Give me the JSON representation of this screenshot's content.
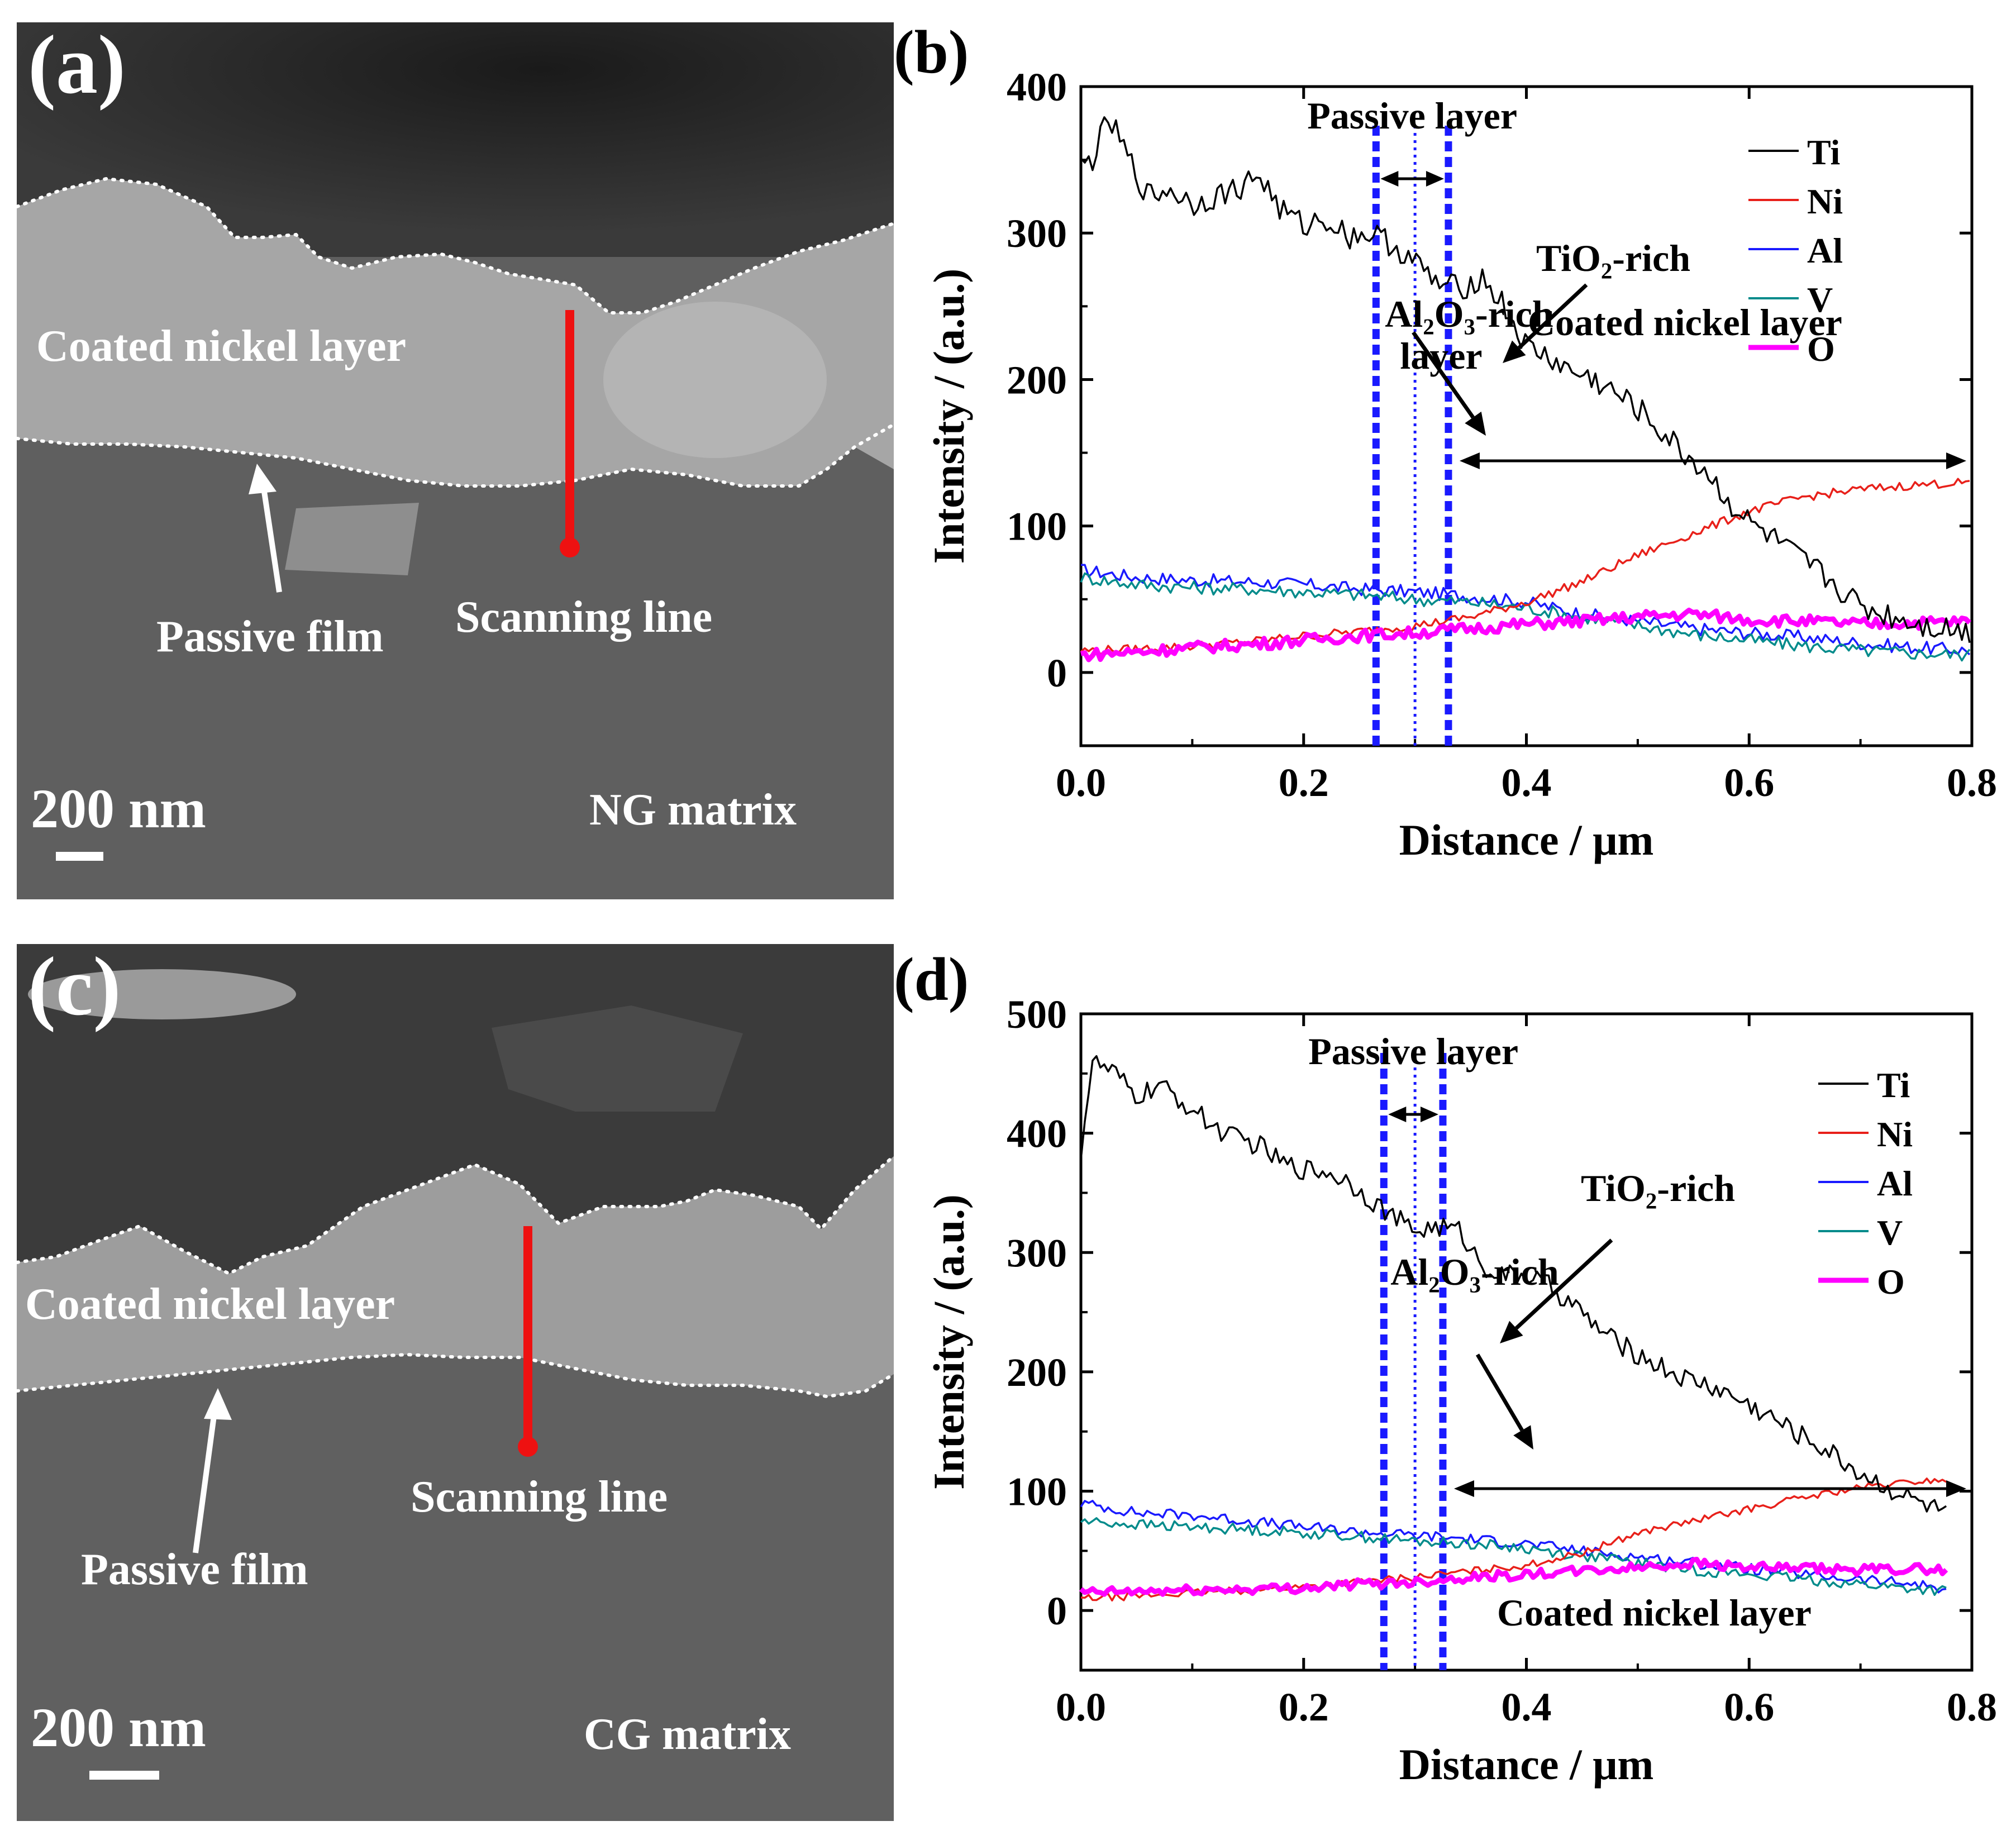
{
  "panel_a": {
    "label": "(a)",
    "coated_layer": "Coated nickel layer",
    "passive_film": "Passive film",
    "scanning_line": "Scanning line",
    "scale_bar": "200 nm",
    "matrix": "NG matrix"
  },
  "panel_c": {
    "label": "(c)",
    "coated_layer": "Coated nickel layer",
    "passive_film": "Passive film",
    "scanning_line": "Scanning line",
    "scale_bar": "200 nm",
    "matrix": "CG matrix"
  },
  "colors": {
    "Ti": "#000000",
    "Ni": "#e8201a",
    "Al": "#1a1aff",
    "V": "#008b8b",
    "O": "#ff00ff",
    "guide": "#1a1aff",
    "scan": "#ee1111"
  },
  "chart_data": [
    {
      "id": "b",
      "panel_label": "(b)",
      "type": "line",
      "xlabel": "Distance / μm",
      "ylabel": "Intensity / (a.u.)",
      "xlim": [
        0,
        0.8
      ],
      "ylim": [
        -50,
        400
      ],
      "xticks": [
        0.0,
        0.2,
        0.4,
        0.6,
        0.8
      ],
      "xtick_labels": [
        "0.0",
        "0.2",
        "0.4",
        "0.6",
        "0.8"
      ],
      "yticks": [
        0,
        100,
        200,
        300,
        400
      ],
      "ytick_labels": [
        "0",
        "100",
        "200",
        "300",
        "400"
      ],
      "legend": [
        "Ti",
        "Ni",
        "Al",
        "V",
        "O"
      ],
      "legend_position": "top-right",
      "annotations": {
        "passive_layer": "Passive layer",
        "tio2_rich": "TiO₂-rich",
        "al2o3_rich_l1": "Al₂O₃-rich",
        "al2o3_rich_l2": "layer",
        "coated_nickel": "Coated nickel layer"
      },
      "guides_x": [
        0.265,
        0.3,
        0.33
      ],
      "series": [
        {
          "name": "Ti",
          "x": [
            0.0,
            0.01,
            0.025,
            0.04,
            0.06,
            0.08,
            0.1,
            0.12,
            0.14,
            0.16,
            0.18,
            0.2,
            0.22,
            0.24,
            0.26,
            0.28,
            0.3,
            0.32,
            0.34,
            0.36,
            0.38,
            0.4,
            0.42,
            0.44,
            0.46,
            0.48,
            0.5,
            0.52,
            0.54,
            0.56,
            0.58,
            0.6,
            0.62,
            0.64,
            0.66,
            0.68,
            0.7,
            0.72,
            0.74,
            0.76,
            0.78,
            0.8
          ],
          "y": [
            345,
            350,
            378,
            355,
            325,
            330,
            320,
            325,
            330,
            340,
            315,
            305,
            310,
            298,
            300,
            292,
            280,
            265,
            262,
            270,
            250,
            222,
            215,
            205,
            200,
            190,
            180,
            165,
            150,
            138,
            118,
            102,
            92,
            80,
            70,
            58,
            45,
            40,
            36,
            32,
            30,
            27
          ]
        },
        {
          "name": "Ni",
          "x": [
            0.0,
            0.05,
            0.1,
            0.15,
            0.2,
            0.25,
            0.3,
            0.35,
            0.4,
            0.45,
            0.5,
            0.55,
            0.6,
            0.65,
            0.7,
            0.75,
            0.8
          ],
          "y": [
            15,
            16,
            18,
            21,
            25,
            28,
            32,
            38,
            48,
            62,
            80,
            95,
            110,
            120,
            125,
            128,
            130
          ]
        },
        {
          "name": "Al",
          "x": [
            0.0,
            0.05,
            0.1,
            0.15,
            0.2,
            0.25,
            0.3,
            0.35,
            0.4,
            0.45,
            0.5,
            0.55,
            0.6,
            0.65,
            0.7,
            0.75,
            0.8
          ],
          "y": [
            70,
            65,
            63,
            62,
            60,
            57,
            55,
            52,
            48,
            40,
            35,
            30,
            27,
            24,
            20,
            17,
            15
          ]
        },
        {
          "name": "V",
          "x": [
            0.0,
            0.05,
            0.1,
            0.15,
            0.2,
            0.25,
            0.3,
            0.35,
            0.4,
            0.45,
            0.5,
            0.55,
            0.6,
            0.65,
            0.7,
            0.75,
            0.8
          ],
          "y": [
            65,
            60,
            58,
            57,
            55,
            53,
            50,
            48,
            44,
            38,
            32,
            26,
            22,
            18,
            15,
            13,
            12
          ]
        },
        {
          "name": "O",
          "x": [
            0.0,
            0.05,
            0.1,
            0.15,
            0.2,
            0.25,
            0.3,
            0.35,
            0.4,
            0.45,
            0.5,
            0.55,
            0.6,
            0.65,
            0.7,
            0.75,
            0.8
          ],
          "y": [
            12,
            14,
            17,
            19,
            22,
            25,
            27,
            30,
            33,
            35,
            38,
            40,
            36,
            35,
            33,
            34,
            35
          ]
        }
      ]
    },
    {
      "id": "d",
      "panel_label": "(d)",
      "type": "line",
      "xlabel": "Distance / μm",
      "ylabel": "Intensity / (a.u.)",
      "xlim": [
        0,
        0.8
      ],
      "ylim": [
        -50,
        500
      ],
      "xticks": [
        0.0,
        0.2,
        0.4,
        0.6,
        0.8
      ],
      "xtick_labels": [
        "0.0",
        "0.2",
        "0.4",
        "0.6",
        "0.8"
      ],
      "yticks": [
        0,
        100,
        200,
        300,
        400,
        500
      ],
      "ytick_labels": [
        "0",
        "100",
        "200",
        "300",
        "400",
        "500"
      ],
      "legend": [
        "Ti",
        "Ni",
        "Al",
        "V",
        "O"
      ],
      "legend_position": "top-right",
      "annotations": {
        "passive_layer": "Passive layer",
        "tio2_rich": "TiO₂-rich",
        "al2o3_rich_l1": "Al₂O₃-rich",
        "al2o3_rich_l2": "",
        "coated_nickel": "Coated nickel layer"
      },
      "guides_x": [
        0.272,
        0.3,
        0.325
      ],
      "series": [
        {
          "name": "Ti",
          "x": [
            0.0,
            0.01,
            0.03,
            0.05,
            0.07,
            0.1,
            0.12,
            0.14,
            0.16,
            0.18,
            0.2,
            0.22,
            0.24,
            0.26,
            0.28,
            0.3,
            0.32,
            0.34,
            0.36,
            0.38,
            0.4,
            0.42,
            0.44,
            0.46,
            0.48,
            0.5,
            0.52,
            0.54,
            0.56,
            0.58,
            0.6,
            0.62,
            0.64,
            0.66,
            0.68,
            0.7,
            0.72,
            0.74,
            0.76,
            0.78
          ],
          "y": [
            385,
            460,
            450,
            430,
            440,
            420,
            405,
            395,
            390,
            375,
            370,
            368,
            360,
            345,
            330,
            318,
            322,
            318,
            290,
            280,
            282,
            272,
            258,
            240,
            225,
            215,
            205,
            195,
            190,
            182,
            172,
            162,
            150,
            140,
            128,
            115,
            105,
            96,
            88,
            80
          ]
        },
        {
          "name": "Ni",
          "x": [
            0.0,
            0.05,
            0.1,
            0.15,
            0.2,
            0.25,
            0.3,
            0.35,
            0.4,
            0.45,
            0.5,
            0.55,
            0.6,
            0.65,
            0.7,
            0.75,
            0.78
          ],
          "y": [
            10,
            12,
            15,
            17,
            20,
            24,
            28,
            33,
            38,
            48,
            65,
            75,
            85,
            95,
            103,
            108,
            110
          ]
        },
        {
          "name": "Al",
          "x": [
            0.0,
            0.05,
            0.1,
            0.15,
            0.2,
            0.25,
            0.3,
            0.35,
            0.4,
            0.45,
            0.5,
            0.55,
            0.6,
            0.65,
            0.7,
            0.75,
            0.78
          ],
          "y": [
            90,
            82,
            80,
            75,
            70,
            66,
            63,
            60,
            56,
            50,
            45,
            40,
            35,
            30,
            26,
            22,
            18
          ]
        },
        {
          "name": "V",
          "x": [
            0.0,
            0.05,
            0.1,
            0.15,
            0.2,
            0.25,
            0.3,
            0.35,
            0.4,
            0.45,
            0.5,
            0.55,
            0.6,
            0.65,
            0.7,
            0.75,
            0.78
          ],
          "y": [
            75,
            72,
            70,
            68,
            65,
            62,
            58,
            56,
            52,
            46,
            40,
            34,
            30,
            26,
            22,
            18,
            16
          ]
        },
        {
          "name": "O",
          "x": [
            0.0,
            0.05,
            0.1,
            0.15,
            0.2,
            0.25,
            0.3,
            0.35,
            0.4,
            0.45,
            0.5,
            0.55,
            0.6,
            0.65,
            0.7,
            0.75,
            0.78
          ],
          "y": [
            15,
            16,
            17,
            18,
            19,
            22,
            24,
            28,
            30,
            33,
            36,
            40,
            36,
            35,
            34,
            35,
            34
          ]
        }
      ]
    }
  ]
}
